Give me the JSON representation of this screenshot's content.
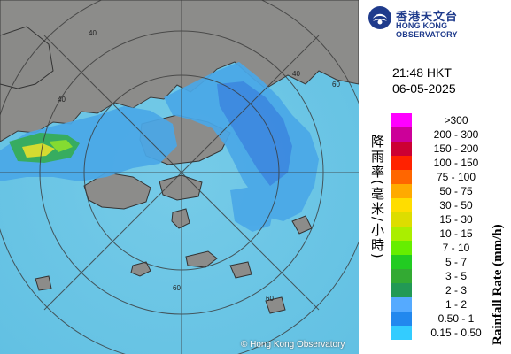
{
  "header": {
    "logo_cn": "香港天文台",
    "logo_en": "HONG KONG OBSERVATORY",
    "logo_icon": "hko-logo-icon"
  },
  "timestamp": {
    "time": "21:48 HKT",
    "date": "06-05-2025"
  },
  "legend": {
    "title_cn": "降雨率(毫米/小時)",
    "title_en": "Rainfall Rate (mm/h)",
    "items": [
      {
        "label": ">300",
        "color": "#ff00ff"
      },
      {
        "label": "200 - 300",
        "color": "#cc0099"
      },
      {
        "label": "150 - 200",
        "color": "#cc0033"
      },
      {
        "label": "100 - 150",
        "color": "#ff2200"
      },
      {
        "label": "75 - 100",
        "color": "#ff6600"
      },
      {
        "label": "50 - 75",
        "color": "#ffaa00"
      },
      {
        "label": "30 - 50",
        "color": "#ffdd00"
      },
      {
        "label": "15 - 30",
        "color": "#dddd00"
      },
      {
        "label": "10 - 15",
        "color": "#aaee00"
      },
      {
        "label": "7 - 10",
        "color": "#66ee00"
      },
      {
        "label": "5 - 7",
        "color": "#22cc22"
      },
      {
        "label": "3 - 5",
        "color": "#33aa33"
      },
      {
        "label": "2 - 3",
        "color": "#229955"
      },
      {
        "label": "1 - 2",
        "color": "#55aaff"
      },
      {
        "label": "0.50 - 1",
        "color": "#2288ee"
      },
      {
        "label": "0.15 - 0.50",
        "color": "#33ccff"
      }
    ]
  },
  "map": {
    "range_ring_labels": [
      "40",
      "60",
      "40",
      "60",
      "40",
      "60"
    ],
    "copyright": "© Hong Kong Observatory",
    "colors": {
      "sea": "#6ec6e6",
      "land": "#8f8f8f",
      "rain_light": "#4aa8e8",
      "rain_medium": "#3a86e0"
    }
  }
}
